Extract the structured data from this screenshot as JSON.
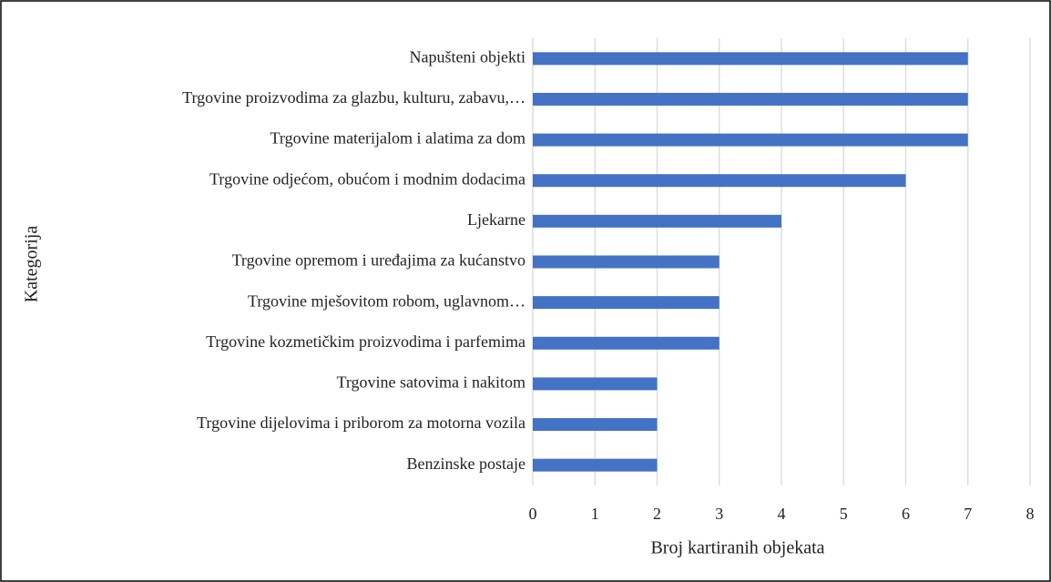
{
  "chart_data": {
    "type": "bar",
    "orientation": "horizontal",
    "x_label": "Broj kartiranih objekata",
    "y_label": "Kategorija",
    "categories": [
      "Napušteni objekti",
      "Trgovine proizvodima za glazbu, kulturu, zabavu,…",
      "Trgovine materijalom i alatima za dom",
      "Trgovine odjećom, obućom i modnim dodacima",
      "Ljekarne",
      "Trgovine opremom i uređajima za kućanstvo",
      "Trgovine mješovitom robom, uglavnom…",
      "Trgovine kozmetičkim proizvodima i parfemima",
      "Trgovine satovima i nakitom",
      "Trgovine dijelovima i priborom za motorna vozila",
      "Benzinske postaje"
    ],
    "values": [
      7,
      7,
      7,
      6,
      4,
      3,
      3,
      3,
      2,
      2,
      2
    ],
    "color": "#4472c4",
    "xlim": [
      0,
      8
    ],
    "xticks": [
      0,
      1,
      2,
      3,
      4,
      5,
      6,
      7,
      8
    ],
    "grid": true
  }
}
